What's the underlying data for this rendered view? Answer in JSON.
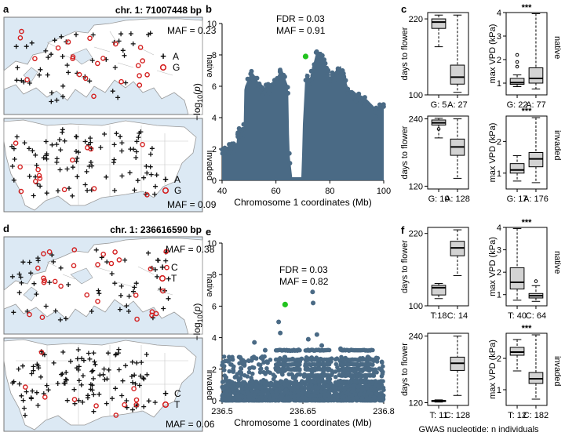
{
  "panels": {
    "a": {
      "letter": "a",
      "title": "chr. 1: 71007448 bp",
      "native": {
        "label": "native",
        "maf": "MAF = 0.23",
        "legend": [
          {
            "symbol": "+",
            "label": "A"
          },
          {
            "symbol": "o",
            "label": "G"
          }
        ]
      },
      "invaded": {
        "label": "invaded",
        "maf": "MAF = 0.09",
        "legend": [
          {
            "symbol": "+",
            "label": "A"
          },
          {
            "symbol": "o",
            "label": "G"
          }
        ]
      }
    },
    "d": {
      "letter": "d",
      "title": "chr. 1: 236616590 bp",
      "native": {
        "label": "native",
        "maf": "MAF = 0.38",
        "legend": [
          {
            "symbol": "+",
            "label": "C"
          },
          {
            "symbol": "o",
            "label": "T"
          }
        ]
      },
      "invaded": {
        "label": "invaded",
        "maf": "MAF = 0.06",
        "legend": [
          {
            "symbol": "+",
            "label": "C"
          },
          {
            "symbol": "o",
            "label": "T"
          }
        ]
      }
    },
    "b": {
      "letter": "b",
      "fdr": "FDR = 0.03",
      "maf": "MAF = 0.91"
    },
    "e": {
      "letter": "e",
      "fdr": "FDR = 0.03",
      "maf": "MAF = 0.82"
    },
    "c": {
      "letter": "c",
      "side_native": "native",
      "side_invaded": "invaded"
    },
    "f": {
      "letter": "f",
      "side_native": "native",
      "side_invaded": "invaded"
    }
  },
  "footer": "GWAS nucleotide: n individuals",
  "colors": {
    "snp": "#4a6a85",
    "lead_snp": "#22c31f",
    "allele_minor": "#d42020",
    "allele_major": "#111111",
    "box_fill": "#d3d3d3",
    "ocean": "#dce9f4"
  },
  "chart_data": [
    {
      "id": "b",
      "type": "scatter",
      "xlabel": "Chromosome 1 coordinates (Mb)",
      "ylabel": "-log10(p)",
      "xlim": [
        40,
        100
      ],
      "ylim": [
        0,
        10
      ],
      "xticks": [
        "40",
        "60",
        "80",
        "100"
      ],
      "yticks": [
        "0",
        "2",
        "4",
        "6",
        "8",
        "10"
      ],
      "lead_snp": {
        "x": 71.0,
        "y": 7.9
      },
      "envelope": [
        [
          40,
          2.0
        ],
        [
          43,
          2.2
        ],
        [
          45.5,
          2.4
        ],
        [
          45.6,
          3.3
        ],
        [
          48,
          3.3
        ],
        [
          48.3,
          5.9
        ],
        [
          51,
          7.0
        ],
        [
          55,
          5.8
        ],
        [
          57,
          6.1
        ],
        [
          60,
          6.4
        ],
        [
          62,
          7.2
        ],
        [
          64.5,
          6.0
        ],
        [
          65,
          1.7
        ],
        [
          66,
          0.2
        ],
        [
          69.5,
          0.2
        ],
        [
          70,
          3.6
        ],
        [
          71,
          6.9
        ],
        [
          72.5,
          6.4
        ],
        [
          75,
          8.2
        ],
        [
          77,
          8.2
        ],
        [
          80,
          6.6
        ],
        [
          84,
          7.3
        ],
        [
          87,
          5.8
        ],
        [
          93,
          5.3
        ],
        [
          97,
          4.6
        ],
        [
          100,
          4.9
        ]
      ]
    },
    {
      "id": "e",
      "type": "scatter",
      "xlabel": "Chromosome 1 coordinates (Mb)",
      "ylabel": "-log10(p)",
      "xlim": [
        236.5,
        236.8
      ],
      "ylim": [
        0,
        10
      ],
      "xticks": [
        "236.5",
        "236.65",
        "236.8"
      ],
      "yticks": [
        "0",
        "2",
        "4",
        "6",
        "8",
        "10"
      ],
      "lead_snp": {
        "x": 236.617,
        "y": 6.1
      },
      "bands": [
        1.2,
        1.6,
        2.0,
        2.3,
        2.6,
        3.2
      ],
      "high_points": [
        {
          "x": 236.605,
          "y": 5.0
        },
        {
          "x": 236.608,
          "y": 4.3
        },
        {
          "x": 236.668,
          "y": 6.9
        },
        {
          "x": 236.669,
          "y": 6.2
        },
        {
          "x": 236.66,
          "y": 3.9
        },
        {
          "x": 236.676,
          "y": 4.2
        },
        {
          "x": 236.685,
          "y": 3.5
        },
        {
          "x": 236.56,
          "y": 3.7
        },
        {
          "x": 236.72,
          "y": 3.3
        },
        {
          "x": 236.58,
          "y": 3.2
        }
      ]
    },
    {
      "id": "c",
      "type": "box",
      "subplots": [
        {
          "id": "c1",
          "ylabel": "days to flower",
          "ylim": [
            100,
            230
          ],
          "yticks": [
            {
              "v": 100,
              "t": "100"
            },
            {
              "v": 220,
              "t": "220"
            }
          ],
          "sig": "",
          "groups": [
            {
              "label": "G: 5",
              "whisk_lo": 176,
              "q1": 205,
              "med": 215,
              "q3": 220,
              "whisk_hi": 226,
              "out": []
            },
            {
              "label": "A: 27",
              "whisk_lo": 104,
              "q1": 117,
              "med": 128,
              "q3": 147,
              "whisk_hi": 226,
              "out": []
            }
          ]
        },
        {
          "id": "c2",
          "ylabel": "max VPD (kPa)",
          "ylim": [
            0.5,
            4.0
          ],
          "yticks": [
            {
              "v": 1,
              "t": "1"
            },
            {
              "v": 2,
              "t": "2"
            },
            {
              "v": 3,
              "t": "3"
            },
            {
              "v": 4,
              "t": "4"
            }
          ],
          "sig": "***",
          "groups": [
            {
              "label": "G: 22",
              "whisk_lo": 0.85,
              "q1": 0.95,
              "med": 1.02,
              "q3": 1.2,
              "whisk_hi": 1.35,
              "out": [
                1.7,
                1.9,
                2.2
              ]
            },
            {
              "label": "A: 77",
              "whisk_lo": 0.75,
              "q1": 1.0,
              "med": 1.2,
              "q3": 1.65,
              "whisk_hi": 3.95,
              "out": []
            }
          ]
        },
        {
          "id": "c3",
          "ylabel": "days to flower",
          "ylim": [
            115,
            245
          ],
          "yticks": [
            {
              "v": 120,
              "t": "120"
            },
            {
              "v": 240,
              "t": "240"
            }
          ],
          "sig": "",
          "groups": [
            {
              "label": "G: 10",
              "whisk_lo": 206,
              "q1": 229,
              "med": 233,
              "q3": 238,
              "whisk_hi": 241,
              "out": [
                222
              ]
            },
            {
              "label": "A: 128",
              "whisk_lo": 134,
              "q1": 175,
              "med": 190,
              "q3": 204,
              "whisk_hi": 240,
              "out": []
            }
          ]
        },
        {
          "id": "c4",
          "ylabel": "max VPD (kPa)",
          "ylim": [
            0.5,
            2.8
          ],
          "yticks": [
            {
              "v": 1,
              "t": "1"
            },
            {
              "v": 2,
              "t": "2"
            }
          ],
          "sig": "***",
          "groups": [
            {
              "label": "G: 17",
              "whisk_lo": 0.75,
              "q1": 1.0,
              "med": 1.1,
              "q3": 1.3,
              "whisk_hi": 1.55,
              "out": []
            },
            {
              "label": "A: 176",
              "whisk_lo": 0.7,
              "q1": 1.2,
              "med": 1.45,
              "q3": 1.65,
              "whisk_hi": 2.75,
              "out": []
            }
          ]
        }
      ]
    },
    {
      "id": "f",
      "type": "box",
      "subplots": [
        {
          "id": "f1",
          "ylabel": "days to flower",
          "ylim": [
            100,
            230
          ],
          "yticks": [
            {
              "v": 100,
              "t": "100"
            },
            {
              "v": 220,
              "t": "220"
            }
          ],
          "sig": "",
          "groups": [
            {
              "label": "T:18",
              "whisk_lo": 112,
              "q1": 118,
              "med": 130,
              "q3": 134,
              "whisk_hi": 137,
              "out": []
            },
            {
              "label": "C: 14",
              "whisk_lo": 150,
              "q1": 183,
              "med": 196,
              "q3": 207,
              "whisk_hi": 226,
              "out": []
            }
          ]
        },
        {
          "id": "f2",
          "ylabel": "max VPD (kPa)",
          "ylim": [
            0.5,
            4.0
          ],
          "yticks": [
            {
              "v": 1,
              "t": "1"
            },
            {
              "v": 2,
              "t": "2"
            },
            {
              "v": 3,
              "t": "3"
            },
            {
              "v": 4,
              "t": "4"
            }
          ],
          "sig": "***",
          "groups": [
            {
              "label": "T: 40",
              "whisk_lo": 0.75,
              "q1": 1.25,
              "med": 1.55,
              "q3": 2.2,
              "whisk_hi": 3.95,
              "out": []
            },
            {
              "label": "C: 64",
              "whisk_lo": 0.7,
              "q1": 0.85,
              "med": 0.95,
              "q3": 1.05,
              "whisk_hi": 1.4,
              "out": [
                1.6
              ]
            }
          ]
        },
        {
          "id": "f3",
          "ylabel": "days to flower",
          "ylim": [
            115,
            245
          ],
          "yticks": [
            {
              "v": 120,
              "t": "120"
            },
            {
              "v": 240,
              "t": "240"
            }
          ],
          "sig": "",
          "groups": [
            {
              "label": "T: 11",
              "whisk_lo": 121,
              "q1": 122,
              "med": 123,
              "q3": 124,
              "whisk_hi": 125,
              "out": []
            },
            {
              "label": "C: 128",
              "whisk_lo": 133,
              "q1": 178,
              "med": 191,
              "q3": 202,
              "whisk_hi": 240,
              "out": []
            }
          ]
        },
        {
          "id": "f4",
          "ylabel": "max VPD (kPa)",
          "ylim": [
            0.5,
            2.8
          ],
          "yticks": [
            {
              "v": 1,
              "t": "1"
            },
            {
              "v": 2,
              "t": "2"
            }
          ],
          "sig": "***",
          "groups": [
            {
              "label": "T: 12",
              "whisk_lo": 1.6,
              "q1": 2.1,
              "med": 2.2,
              "q3": 2.35,
              "whisk_hi": 2.6,
              "out": []
            },
            {
              "label": "C: 182",
              "whisk_lo": 0.7,
              "q1": 1.2,
              "med": 1.35,
              "q3": 1.55,
              "whisk_hi": 2.75,
              "out": []
            }
          ]
        }
      ]
    }
  ]
}
